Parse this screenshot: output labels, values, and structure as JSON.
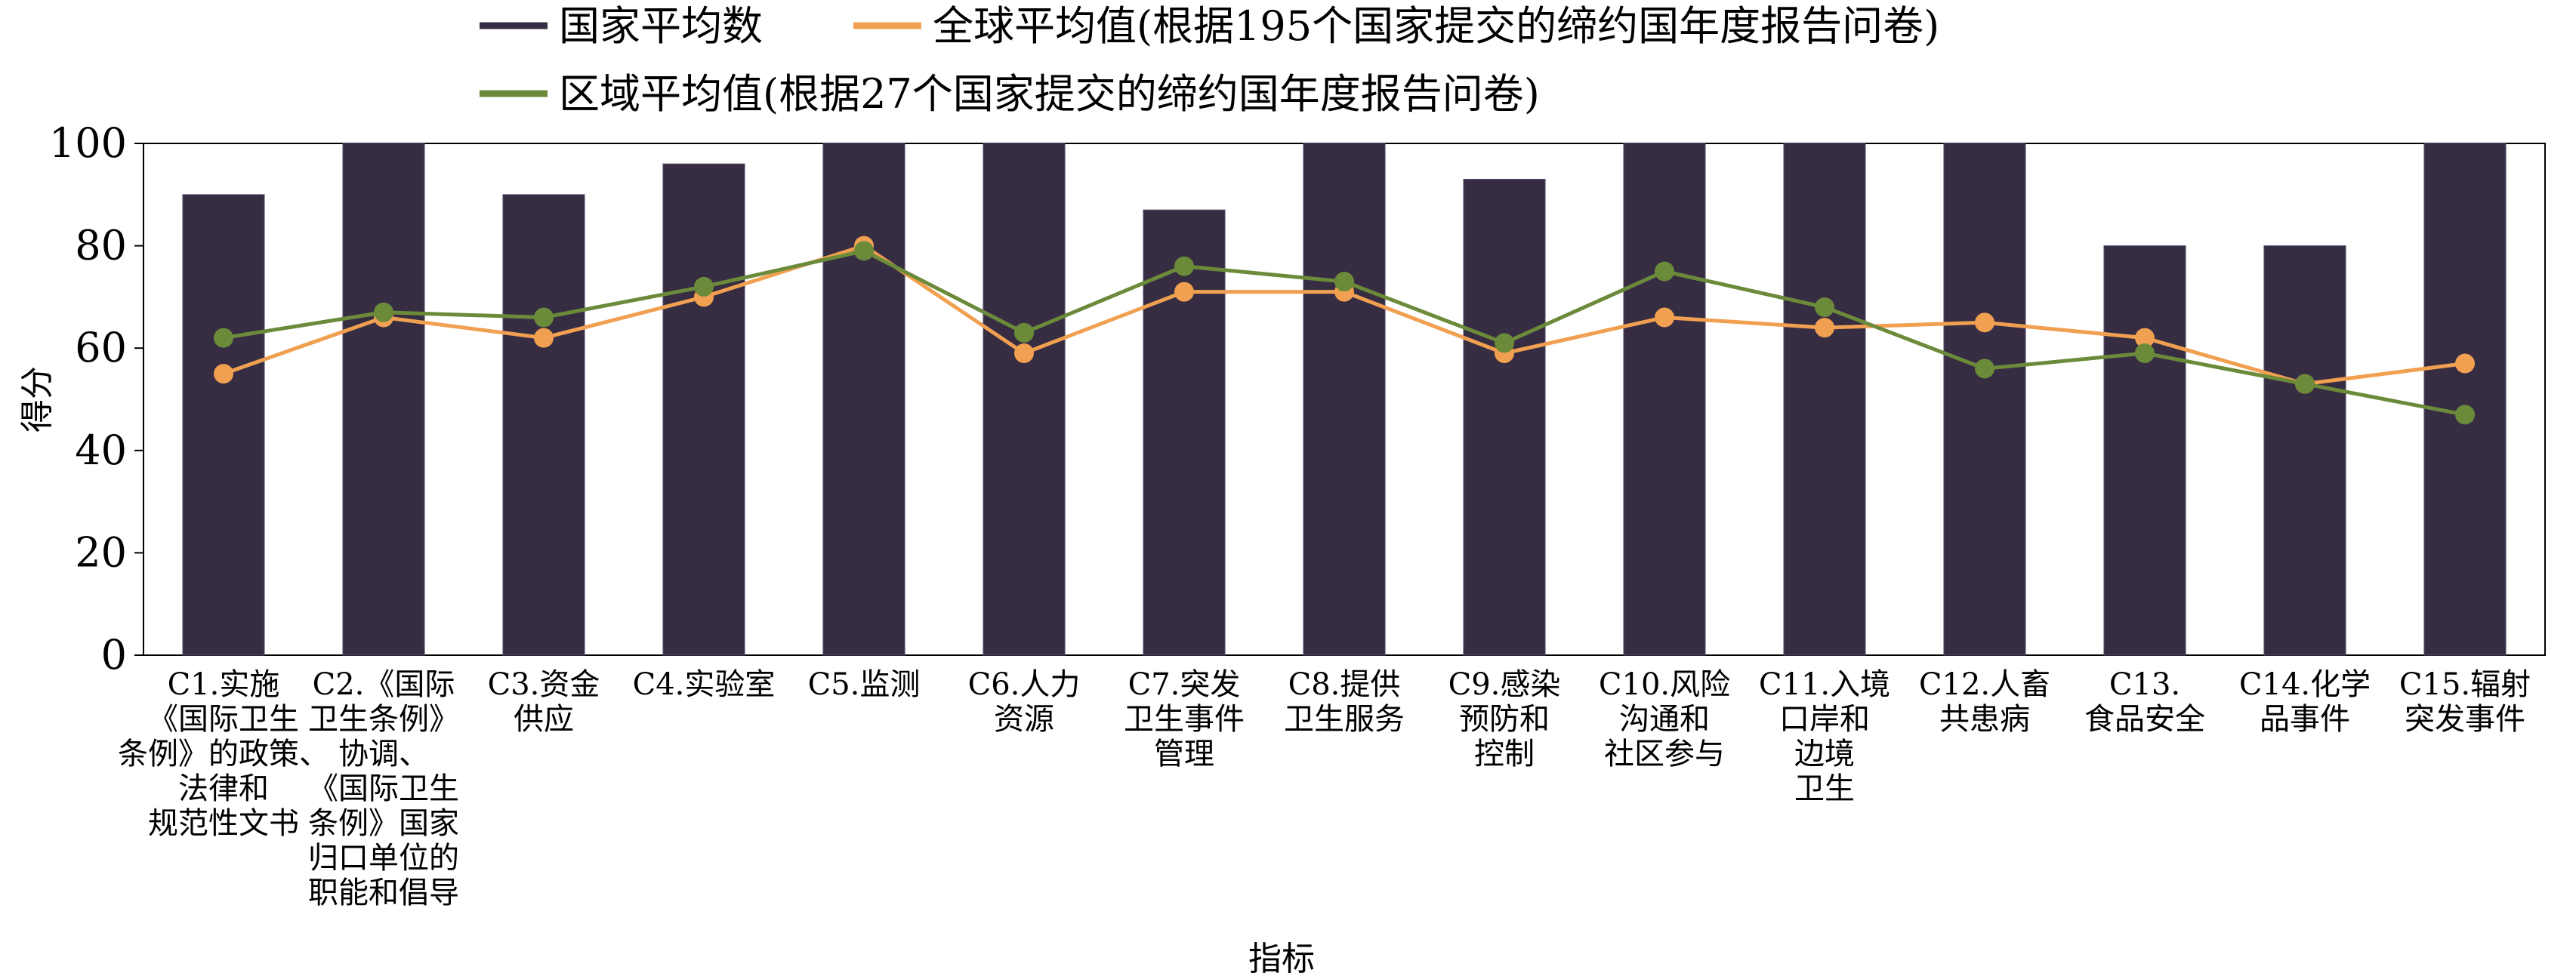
{
  "chart_data": {
    "type": "bar",
    "title": "",
    "xlabel": "指标",
    "ylabel": "得分",
    "ylim": [
      0,
      100
    ],
    "yticks": [
      0,
      20,
      40,
      60,
      80,
      100
    ],
    "grid": false,
    "legend_position": "top",
    "categories": [
      "C1.实施《国际卫生条例》的政策、法律和规范性文书",
      "C2.《国际卫生条例》协调、《国际卫生条例》国家归口单位的职能和倡导",
      "C3.资金供应",
      "C4.实验室",
      "C5.监测",
      "C6.人力资源",
      "C7.突发卫生事件管理",
      "C8.提供卫生服务",
      "C9.感染预防和控制",
      "C10.风险沟通和社区参与",
      "C11.入境口岸和边境卫生",
      "C12.人畜共患病",
      "C13.食品安全",
      "C14.化学品事件",
      "C15.辐射突发事件"
    ],
    "category_lines": [
      [
        "C1.实施",
        "《国际卫生",
        "条例》的政策、",
        "法律和",
        "规范性文书"
      ],
      [
        "C2.《国际",
        "卫生条例》",
        "协调、",
        "《国际卫生",
        "条例》国家",
        "归口单位的",
        "职能和倡导"
      ],
      [
        "C3.资金",
        "供应"
      ],
      [
        "C4.实验室"
      ],
      [
        "C5.监测"
      ],
      [
        "C6.人力",
        "资源"
      ],
      [
        "C7.突发",
        "卫生事件",
        "管理"
      ],
      [
        "C8.提供",
        "卫生服务"
      ],
      [
        "C9.感染",
        "预防和",
        "控制"
      ],
      [
        "C10.风险",
        "沟通和",
        "社区参与"
      ],
      [
        "C11.入境",
        "口岸和",
        "边境",
        "卫生"
      ],
      [
        "C12.人畜",
        "共患病"
      ],
      [
        "C13.",
        "食品安全"
      ],
      [
        "C14.化学",
        "品事件"
      ],
      [
        "C15.辐射",
        "突发事件"
      ]
    ],
    "series": [
      {
        "name": "国家平均数",
        "kind": "bar",
        "color": "#372d42",
        "values": [
          90,
          100,
          90,
          96,
          100,
          100,
          87,
          100,
          93,
          100,
          100,
          100,
          80,
          80,
          100
        ]
      },
      {
        "name": "全球平均值(根据195个国家提交的缔约国年度报告问卷)",
        "kind": "line",
        "color": "#f0a050",
        "values": [
          55,
          66,
          62,
          70,
          80,
          59,
          71,
          71,
          59,
          66,
          64,
          65,
          62,
          53,
          57
        ]
      },
      {
        "name": "区域平均值(根据27个国家提交的缔约国年度报告问卷)",
        "kind": "line",
        "color": "#6b8b3a",
        "values": [
          62,
          67,
          66,
          72,
          79,
          63,
          76,
          73,
          61,
          75,
          68,
          56,
          59,
          53,
          47
        ]
      }
    ]
  }
}
